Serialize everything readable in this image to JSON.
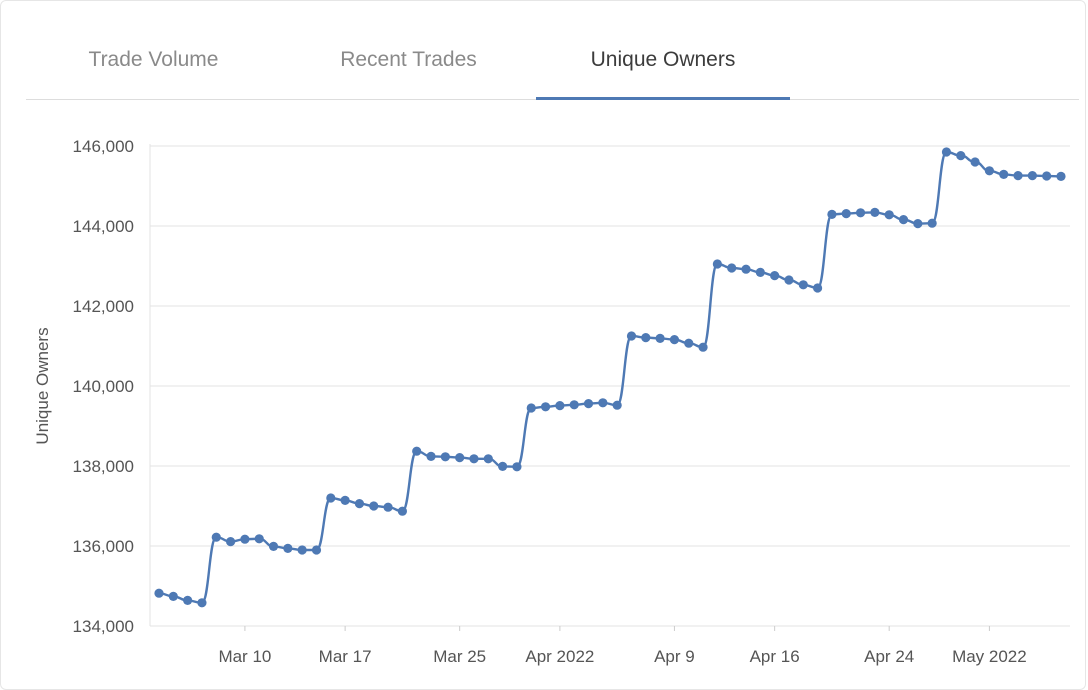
{
  "tabs": [
    {
      "label": "Trade Volume",
      "active": false
    },
    {
      "label": "Recent Trades",
      "active": false
    },
    {
      "label": "Unique Owners",
      "active": true
    }
  ],
  "colors": {
    "series": "#4e79b4",
    "grid": "#e3e3e3",
    "tab_underline": "#4e79b4"
  },
  "chart_data": {
    "type": "line",
    "title": "",
    "xlabel": "",
    "ylabel": "Unique Owners",
    "ylim": [
      134000,
      146000
    ],
    "yticks": [
      134000,
      136000,
      138000,
      140000,
      142000,
      144000,
      146000
    ],
    "ytick_labels": [
      "134,000",
      "136,000",
      "138,000",
      "140,000",
      "142,000",
      "144,000",
      "146,000"
    ],
    "xlim": [
      "2022-03-04",
      "2022-05-06"
    ],
    "xticks": [
      "2022-03-10",
      "2022-03-17",
      "2022-03-25",
      "2022-04-01",
      "2022-04-09",
      "2022-04-16",
      "2022-04-24",
      "2022-05-01"
    ],
    "xtick_labels": [
      "Mar 10",
      "Mar 17",
      "Mar 25",
      "Apr 2022",
      "Apr 9",
      "Apr 16",
      "Apr 24",
      "May 2022"
    ],
    "grid": true,
    "legend": "none",
    "series": [
      {
        "x": [
          "2022-03-04",
          "2022-03-05",
          "2022-03-06",
          "2022-03-07",
          "2022-03-08",
          "2022-03-09",
          "2022-03-10",
          "2022-03-11",
          "2022-03-12",
          "2022-03-13",
          "2022-03-14",
          "2022-03-15",
          "2022-03-16",
          "2022-03-17",
          "2022-03-18",
          "2022-03-19",
          "2022-03-20",
          "2022-03-21",
          "2022-03-22",
          "2022-03-23",
          "2022-03-24",
          "2022-03-25",
          "2022-03-26",
          "2022-03-27",
          "2022-03-28",
          "2022-03-29",
          "2022-03-30",
          "2022-03-31",
          "2022-04-01",
          "2022-04-02",
          "2022-04-03",
          "2022-04-04",
          "2022-04-05",
          "2022-04-06",
          "2022-04-07",
          "2022-04-08",
          "2022-04-09",
          "2022-04-10",
          "2022-04-11",
          "2022-04-12",
          "2022-04-13",
          "2022-04-14",
          "2022-04-15",
          "2022-04-16",
          "2022-04-17",
          "2022-04-18",
          "2022-04-19",
          "2022-04-20",
          "2022-04-21",
          "2022-04-22",
          "2022-04-23",
          "2022-04-24",
          "2022-04-25",
          "2022-04-26",
          "2022-04-27",
          "2022-04-28",
          "2022-04-29",
          "2022-04-30",
          "2022-05-01",
          "2022-05-02",
          "2022-05-03",
          "2022-05-04",
          "2022-05-05",
          "2022-05-06"
        ],
        "values": [
          134820,
          134740,
          134640,
          134580,
          136220,
          136110,
          136170,
          136180,
          135990,
          135940,
          135900,
          135900,
          137200,
          137140,
          137060,
          137000,
          136970,
          136870,
          138370,
          138240,
          138230,
          138210,
          138180,
          138180,
          137990,
          137980,
          139450,
          139480,
          139510,
          139530,
          139560,
          139580,
          139520,
          141250,
          141210,
          141190,
          141160,
          141070,
          140970,
          143050,
          142950,
          142920,
          142840,
          142760,
          142650,
          142530,
          142450,
          144290,
          144310,
          144330,
          144340,
          144280,
          144160,
          144060,
          144070,
          145850,
          145760,
          145600,
          145380,
          145290,
          145260,
          145260,
          145250,
          145240
        ]
      }
    ]
  }
}
